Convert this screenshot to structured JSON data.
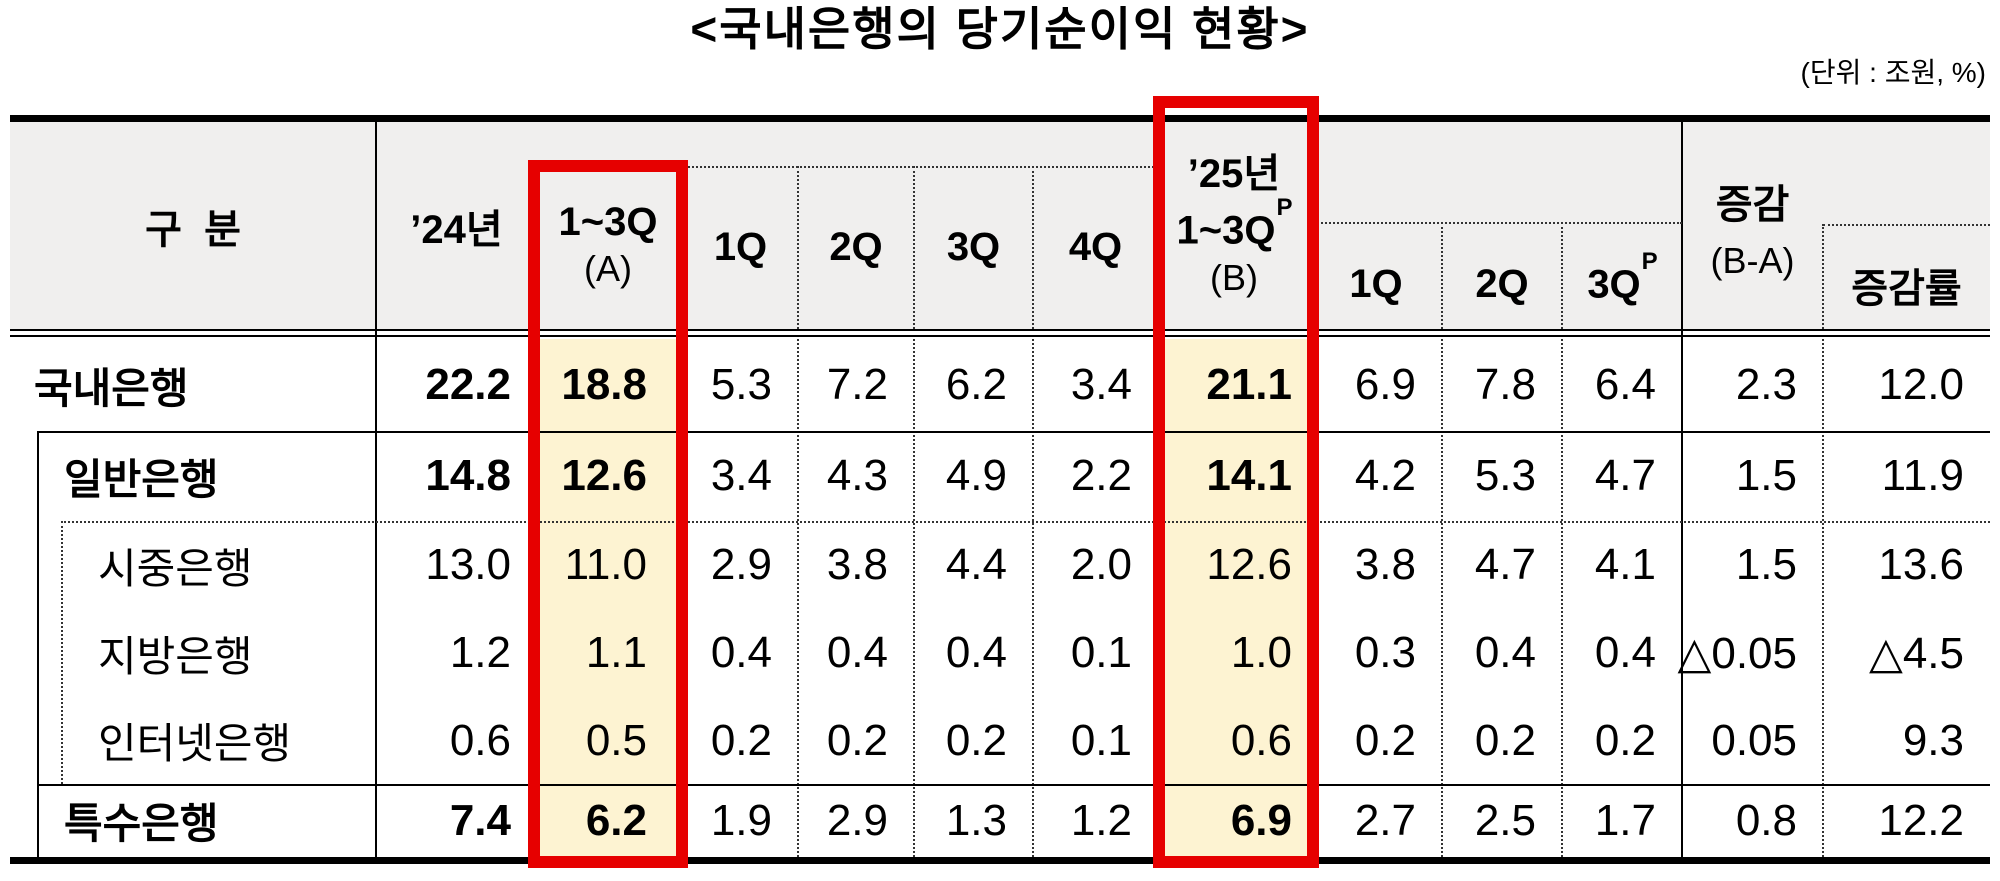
{
  "title": "<국내은행의 당기순이익 현황>",
  "unit_note": "(단위 : 조원,  %)",
  "colors": {
    "accent_red": "#e60000",
    "highlight_yellow": "#fdf3d2",
    "header_gray": "#f0efee"
  },
  "table": {
    "header": {
      "category": "구  분",
      "y24": "’24년",
      "colA_line1": "1~3Q",
      "colA_line2": "(A)",
      "q24_cols": [
        "1Q",
        "2Q",
        "3Q",
        "4Q"
      ],
      "colB_line1": "’25년",
      "colB_line2": "1~3Q",
      "colB_sup": "P",
      "colB_line3": "(B)",
      "q25_cols": [
        "1Q",
        "2Q",
        "3Q"
      ],
      "q25_sup": "P",
      "delta_line1": "증감",
      "delta_line2": "(B-A)",
      "delta_rate": "증감률"
    },
    "rows": [
      {
        "label": "국내은행",
        "level": 0,
        "bold": true,
        "values": [
          "22.2",
          "18.8",
          "5.3",
          "7.2",
          "6.2",
          "3.4",
          "21.1",
          "6.9",
          "7.8",
          "6.4",
          "2.3",
          "12.0"
        ]
      },
      {
        "label": "일반은행",
        "level": 1,
        "bold": true,
        "values": [
          "14.8",
          "12.6",
          "3.4",
          "4.3",
          "4.9",
          "2.2",
          "14.1",
          "4.2",
          "5.3",
          "4.7",
          "1.5",
          "11.9"
        ]
      },
      {
        "label": "시중은행",
        "level": 2,
        "bold": false,
        "values": [
          "13.0",
          "11.0",
          "2.9",
          "3.8",
          "4.4",
          "2.0",
          "12.6",
          "3.8",
          "4.7",
          "4.1",
          "1.5",
          "13.6"
        ]
      },
      {
        "label": "지방은행",
        "level": 2,
        "bold": false,
        "values": [
          "1.2",
          "1.1",
          "0.4",
          "0.4",
          "0.4",
          "0.1",
          "1.0",
          "0.3",
          "0.4",
          "0.4",
          "△0.05",
          "△4.5"
        ]
      },
      {
        "label": "인터넷은행",
        "level": 2,
        "bold": false,
        "values": [
          "0.6",
          "0.5",
          "0.2",
          "0.2",
          "0.2",
          "0.1",
          "0.6",
          "0.2",
          "0.2",
          "0.2",
          "0.05",
          "9.3"
        ]
      },
      {
        "label": "특수은행",
        "level": 1,
        "bold": true,
        "values": [
          "7.4",
          "6.2",
          "1.9",
          "2.9",
          "1.3",
          "1.2",
          "6.9",
          "2.7",
          "2.5",
          "1.7",
          "0.8",
          "12.2"
        ]
      }
    ]
  }
}
